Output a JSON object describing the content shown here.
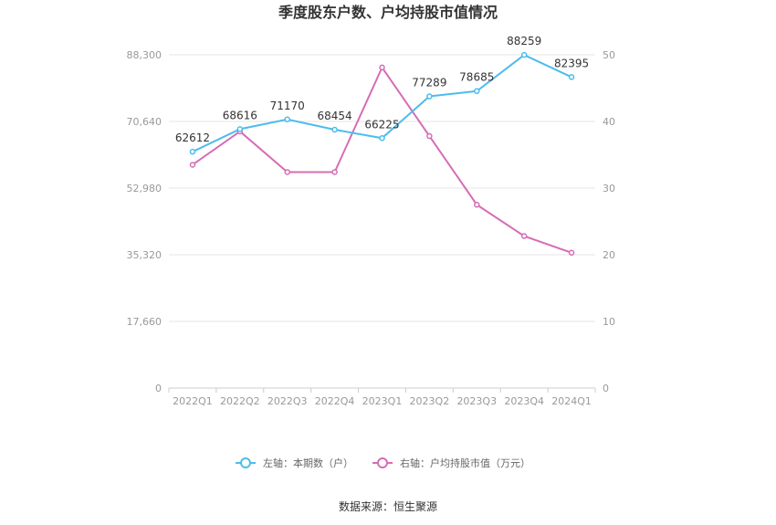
{
  "chart_data": {
    "type": "line",
    "title": "季度股东户数、户均持股市值情况",
    "categories": [
      "2022Q1",
      "2022Q2",
      "2022Q3",
      "2022Q4",
      "2023Q1",
      "2023Q2",
      "2023Q3",
      "2023Q4",
      "2024Q1"
    ],
    "left_axis": {
      "ticks": [
        "0",
        "17,660",
        "35,320",
        "52,980",
        "70,640",
        "88,300"
      ],
      "range": [
        0,
        88300
      ]
    },
    "right_axis": {
      "ticks": [
        "0",
        "10",
        "20",
        "30",
        "40",
        "50"
      ],
      "range": [
        0,
        50
      ]
    },
    "series": [
      {
        "name": "左轴：本期数（户）",
        "axis": "left",
        "color": "#4dbcec",
        "values": [
          62612,
          68616,
          71170,
          68454,
          66225,
          77289,
          78685,
          88259,
          82395
        ],
        "labels": [
          "62612",
          "68616",
          "71170",
          "68454",
          "66225",
          "77289",
          "78685",
          "88259",
          "82395"
        ]
      },
      {
        "name": "右轴：户均持股市值（万元）",
        "axis": "right",
        "color": "#d56db5",
        "values": [
          33.5,
          38.5,
          32.4,
          32.4,
          48.1,
          37.8,
          27.5,
          22.8,
          20.3
        ]
      }
    ],
    "grid": true,
    "legend_position": "bottom-center"
  },
  "footer": {
    "source": "数据来源：恒生聚源"
  }
}
